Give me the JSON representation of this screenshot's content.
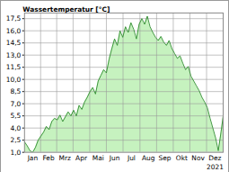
{
  "chart_data": {
    "type": "area",
    "title": "Wassertemperatur [°C]",
    "annotation": "2021",
    "x": [
      1,
      6,
      11,
      16,
      21,
      26,
      31,
      36,
      41,
      46,
      51,
      56,
      61,
      66,
      71,
      76,
      81,
      86,
      91,
      96,
      101,
      106,
      111,
      116,
      121,
      126,
      131,
      136,
      141,
      146,
      151,
      156,
      161,
      166,
      171,
      176,
      181,
      186,
      191,
      196,
      201,
      206,
      211,
      216,
      221,
      226,
      231,
      236,
      241,
      246,
      251,
      256,
      261,
      266,
      271,
      276,
      281,
      286,
      291,
      296,
      301,
      306,
      311,
      316,
      321,
      326,
      331,
      336,
      341,
      346,
      351,
      356,
      361,
      365
    ],
    "values": [
      2.3,
      1.8,
      1.2,
      1.0,
      1.6,
      2.5,
      3.0,
      3.5,
      4.2,
      3.8,
      4.8,
      5.2,
      5.0,
      5.6,
      4.8,
      5.4,
      6.0,
      5.5,
      6.2,
      5.5,
      6.8,
      6.3,
      7.2,
      7.8,
      8.5,
      9.0,
      8.2,
      9.8,
      10.5,
      11.2,
      10.8,
      12.5,
      13.8,
      15.0,
      14.2,
      16.0,
      15.2,
      16.5,
      15.8,
      17.0,
      16.2,
      15.0,
      16.8,
      17.5,
      16.8,
      17.8,
      16.5,
      15.8,
      15.2,
      14.8,
      15.3,
      14.6,
      14.2,
      14.8,
      13.8,
      13.2,
      12.6,
      12.9,
      12.0,
      11.2,
      11.6,
      10.4,
      9.8,
      9.2,
      8.6,
      7.8,
      7.2,
      6.5,
      5.2,
      4.0,
      2.8,
      1.2,
      3.5,
      5.5
    ],
    "color": "#2e8b2e",
    "xlim": [
      1,
      365
    ],
    "xticks": [
      {
        "value": 16,
        "label": "Jan"
      },
      {
        "value": 45,
        "label": "Feb"
      },
      {
        "value": 75,
        "label": "Mrz"
      },
      {
        "value": 105,
        "label": "Apr"
      },
      {
        "value": 136,
        "label": "Mai"
      },
      {
        "value": 166,
        "label": "Jun"
      },
      {
        "value": 197,
        "label": "Jul"
      },
      {
        "value": 228,
        "label": "Aug"
      },
      {
        "value": 258,
        "label": "Sep"
      },
      {
        "value": 289,
        "label": "Okt"
      },
      {
        "value": 319,
        "label": "Nov"
      },
      {
        "value": 350,
        "label": "Dez"
      }
    ],
    "ylim": [
      1,
      18.2
    ],
    "yticks": [
      {
        "value": 1,
        "label": "1,0"
      },
      {
        "value": 2.5,
        "label": "2,5"
      },
      {
        "value": 4,
        "label": "4,0"
      },
      {
        "value": 5.5,
        "label": "5,5"
      },
      {
        "value": 7,
        "label": "7,0"
      },
      {
        "value": 8.5,
        "label": "8,5"
      },
      {
        "value": 10,
        "label": "10,0"
      },
      {
        "value": 11.5,
        "label": "11,5"
      },
      {
        "value": 13,
        "label": "13,0"
      },
      {
        "value": 14.5,
        "label": "14,5"
      },
      {
        "value": 16,
        "label": "16,0"
      },
      {
        "value": 17.5,
        "label": "17,5"
      }
    ],
    "grid": true
  }
}
